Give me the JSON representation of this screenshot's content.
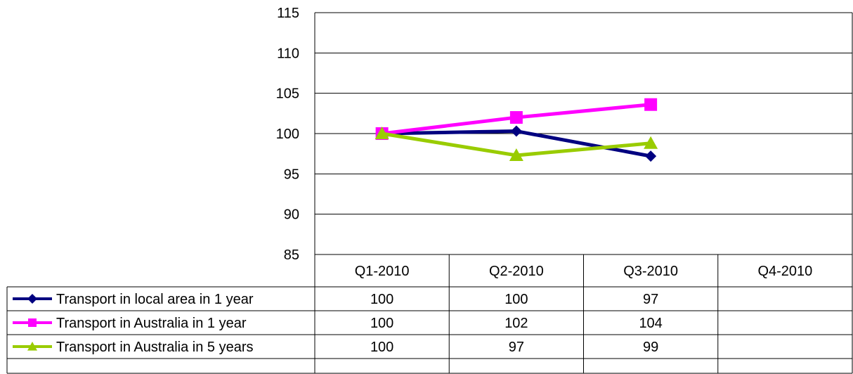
{
  "chart_data": {
    "type": "line",
    "categories": [
      "Q1-2010",
      "Q2-2010",
      "Q3-2010",
      "Q4-2010"
    ],
    "ylim": [
      85,
      115
    ],
    "yticks": [
      85,
      90,
      95,
      100,
      105,
      110,
      115
    ],
    "grid": true,
    "legend": "data-table-left",
    "series": [
      {
        "name": "Transport in local area in 1 year",
        "color": "#000080",
        "marker": "diamond",
        "values": [
          100,
          100.3,
          97.2,
          null
        ],
        "table_values": [
          "100",
          "100",
          "97",
          ""
        ]
      },
      {
        "name": "Transport in Australia in 1 year",
        "color": "#ff00ff",
        "marker": "square",
        "values": [
          100,
          102,
          103.6,
          null
        ],
        "table_values": [
          "100",
          "102",
          "104",
          ""
        ]
      },
      {
        "name": "Transport in Australia in 5 years",
        "color": "#99cc00",
        "marker": "triangle",
        "values": [
          100,
          97.3,
          98.8,
          null
        ],
        "table_values": [
          "100",
          "97",
          "99",
          ""
        ]
      }
    ]
  }
}
